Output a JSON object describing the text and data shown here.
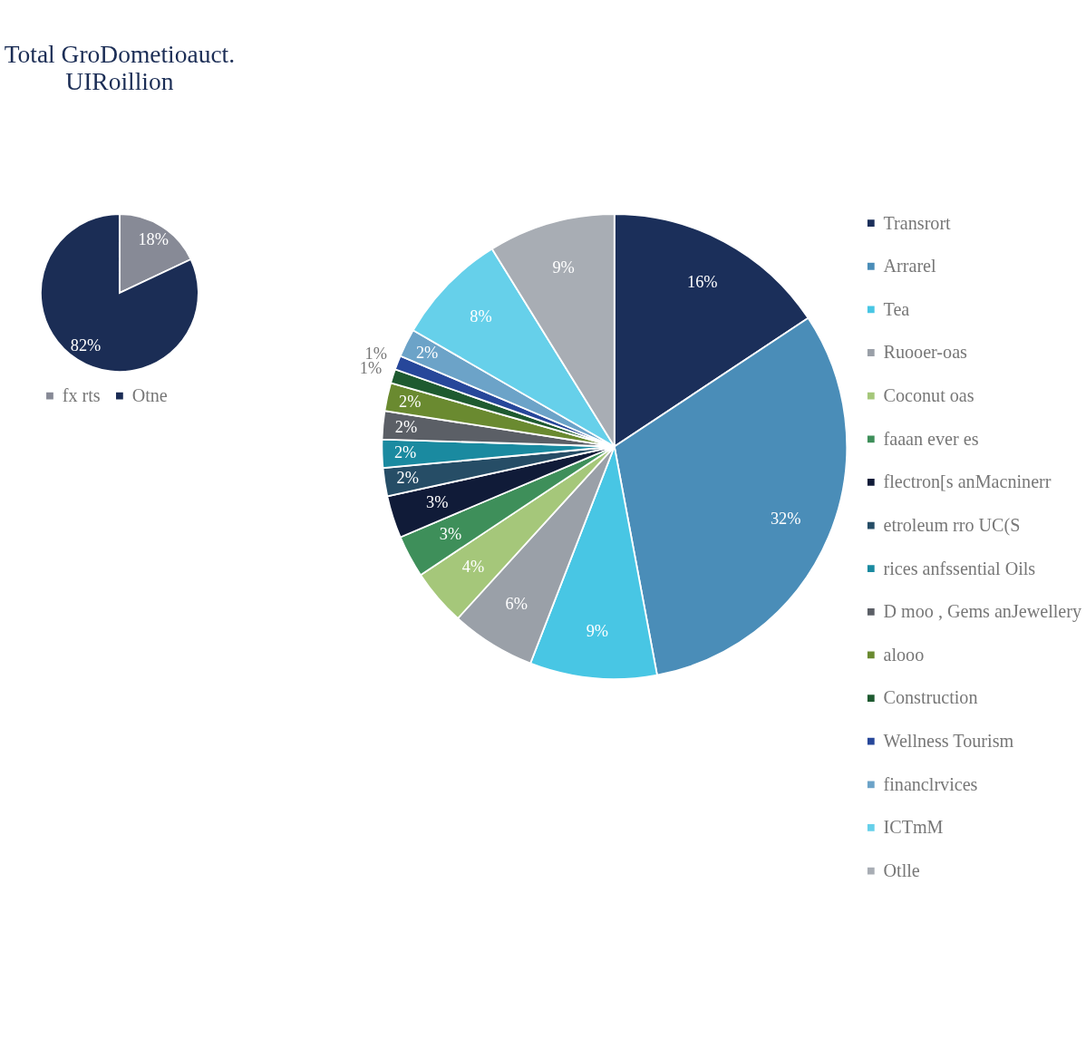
{
  "chart_data": [
    {
      "type": "pie",
      "title": [
        "Total GroDometioauct.",
        "UIRoillion"
      ],
      "categories": [
        "fx rts",
        "Otne"
      ],
      "values": [
        18,
        82
      ],
      "colors": [
        "#878a96",
        "#1b2d55"
      ],
      "value_labels": [
        "18%",
        "82%"
      ],
      "legend": "bottom"
    },
    {
      "type": "pie",
      "categories": [
        "Transrort",
        "Arrarel",
        "Tea",
        "Ruooer-oas",
        "Coconut oas",
        "faaan ever es",
        "flectron[s anMacninerr",
        "etroleum rro UC(S",
        "rices anfssential Oils",
        "D moo , Gems anJewellery",
        "alooo",
        "Construction",
        "Wellness Tourism",
        "financlrvices",
        "ICTmM",
        "Otlle"
      ],
      "values": [
        16,
        32,
        9,
        6,
        4,
        3,
        3,
        2,
        2,
        2,
        2,
        1,
        1,
        2,
        8,
        9
      ],
      "colors": [
        "#1b2f5a",
        "#4a8db8",
        "#48c6e4",
        "#9aa0a8",
        "#a5c77a",
        "#3e8f5a",
        "#101b38",
        "#264d66",
        "#1a8aa0",
        "#5b5f66",
        "#6a8a30",
        "#1e5a30",
        "#27479a",
        "#6ca3c8",
        "#66d0ea",
        "#a8adb4"
      ],
      "value_labels": [
        "16%",
        "32%",
        "9%",
        "6%",
        "4%",
        "3%",
        "3%",
        "2%",
        "2%",
        "2%",
        "2%",
        "1%",
        "1%",
        "2%",
        "8%",
        "9%"
      ],
      "legend": "right"
    }
  ]
}
